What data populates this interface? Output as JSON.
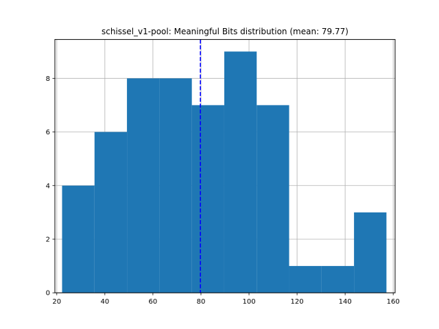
{
  "chart_data": {
    "type": "bar",
    "title": "schissel_v1-pool: Meaningful Bits distribution (mean: 79.77)",
    "xlabel": "",
    "ylabel": "",
    "xlim": [
      19.2,
      160.8
    ],
    "ylim": [
      0,
      9.45
    ],
    "x_ticks": [
      20,
      40,
      60,
      80,
      100,
      120,
      140,
      160
    ],
    "y_ticks": [
      0,
      2,
      4,
      6,
      8
    ],
    "bin_edges": [
      22.2,
      35.7,
      49.2,
      62.7,
      76.2,
      89.7,
      103.2,
      116.7,
      130.2,
      143.7,
      157.2
    ],
    "values": [
      4,
      6,
      8,
      8,
      7,
      9,
      7,
      1,
      1,
      3
    ],
    "mean": 79.77,
    "grid": true,
    "colors": {
      "bar": "#1f77b4",
      "mean_line": "#0000ff",
      "grid": "#b0b0b0"
    }
  }
}
